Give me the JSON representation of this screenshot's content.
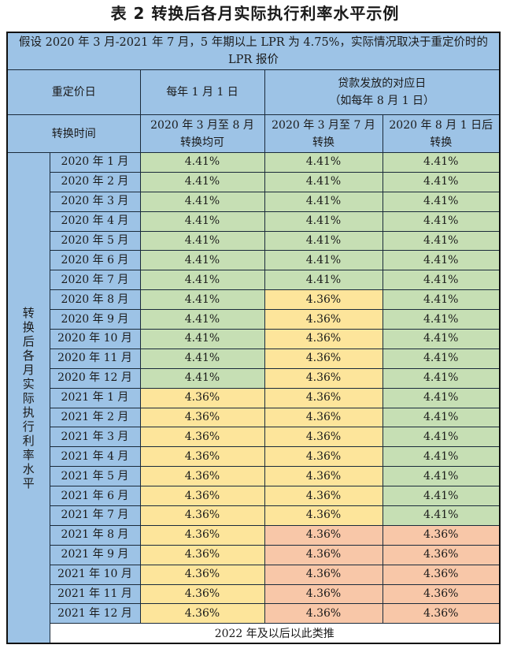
{
  "title": "表 2  转换后各月实际执行利率水平示例",
  "note": "假设 2020 年 3 月-2021 年 7 月，5 年期以上 LPR 为 4.75%，实际情况取决于重定价时的 LPR 报价",
  "header": {
    "repricing_label": "重定价日",
    "jan1": "每年 1 月 1 日",
    "loan_day_line1": "贷款发放的对应日",
    "loan_day_line2": "（如每年 8 月 1 日）",
    "switch_time_label": "转换时间",
    "col1_line1": "2020 年 3 月至 8 月",
    "col1_line2": "转换均可",
    "col2_line1": "2020 年 3 月至 7 月",
    "col2_line2": "转换",
    "col3_line1": "2020 年 8 月 1 日后",
    "col3_line2": "转换"
  },
  "vertical_label": "转换后各月实际执行利率水平",
  "colors": {
    "header_blue": "#9dc3e6",
    "green": "#c6dfb4",
    "yellow": "#fde59b",
    "salmon": "#f8c7a8"
  },
  "rows": [
    {
      "month": "2020 年 1 月",
      "c1": "4.41%",
      "c2": "4.41%",
      "c3": "4.41%",
      "k1": "green",
      "k2": "green",
      "k3": "green"
    },
    {
      "month": "2020 年 2 月",
      "c1": "4.41%",
      "c2": "4.41%",
      "c3": "4.41%",
      "k1": "green",
      "k2": "green",
      "k3": "green"
    },
    {
      "month": "2020 年 3 月",
      "c1": "4.41%",
      "c2": "4.41%",
      "c3": "4.41%",
      "k1": "green",
      "k2": "green",
      "k3": "green"
    },
    {
      "month": "2020 年 4 月",
      "c1": "4.41%",
      "c2": "4.41%",
      "c3": "4.41%",
      "k1": "green",
      "k2": "green",
      "k3": "green"
    },
    {
      "month": "2020 年 5 月",
      "c1": "4.41%",
      "c2": "4.41%",
      "c3": "4.41%",
      "k1": "green",
      "k2": "green",
      "k3": "green"
    },
    {
      "month": "2020 年 6 月",
      "c1": "4.41%",
      "c2": "4.41%",
      "c3": "4.41%",
      "k1": "green",
      "k2": "green",
      "k3": "green"
    },
    {
      "month": "2020 年 7 月",
      "c1": "4.41%",
      "c2": "4.41%",
      "c3": "4.41%",
      "k1": "green",
      "k2": "green",
      "k3": "green"
    },
    {
      "month": "2020 年 8 月",
      "c1": "4.41%",
      "c2": "4.36%",
      "c3": "4.41%",
      "k1": "green",
      "k2": "yellow",
      "k3": "green"
    },
    {
      "month": "2020 年 9 月",
      "c1": "4.41%",
      "c2": "4.36%",
      "c3": "4.41%",
      "k1": "green",
      "k2": "yellow",
      "k3": "green"
    },
    {
      "month": "2020 年 10 月",
      "c1": "4.41%",
      "c2": "4.36%",
      "c3": "4.41%",
      "k1": "green",
      "k2": "yellow",
      "k3": "green"
    },
    {
      "month": "2020 年 11 月",
      "c1": "4.41%",
      "c2": "4.36%",
      "c3": "4.41%",
      "k1": "green",
      "k2": "yellow",
      "k3": "green"
    },
    {
      "month": "2020 年 12 月",
      "c1": "4.41%",
      "c2": "4.36%",
      "c3": "4.41%",
      "k1": "green",
      "k2": "yellow",
      "k3": "green"
    },
    {
      "month": "2021 年 1 月",
      "c1": "4.36%",
      "c2": "4.36%",
      "c3": "4.41%",
      "k1": "yellow",
      "k2": "yellow",
      "k3": "green"
    },
    {
      "month": "2021 年 2 月",
      "c1": "4.36%",
      "c2": "4.36%",
      "c3": "4.41%",
      "k1": "yellow",
      "k2": "yellow",
      "k3": "green"
    },
    {
      "month": "2021 年 3 月",
      "c1": "4.36%",
      "c2": "4.36%",
      "c3": "4.41%",
      "k1": "yellow",
      "k2": "yellow",
      "k3": "green"
    },
    {
      "month": "2021 年 4 月",
      "c1": "4.36%",
      "c2": "4.36%",
      "c3": "4.41%",
      "k1": "yellow",
      "k2": "yellow",
      "k3": "green"
    },
    {
      "month": "2021 年 5 月",
      "c1": "4.36%",
      "c2": "4.36%",
      "c3": "4.41%",
      "k1": "yellow",
      "k2": "yellow",
      "k3": "green"
    },
    {
      "month": "2021 年 6 月",
      "c1": "4.36%",
      "c2": "4.36%",
      "c3": "4.41%",
      "k1": "yellow",
      "k2": "yellow",
      "k3": "green"
    },
    {
      "month": "2021 年 7 月",
      "c1": "4.36%",
      "c2": "4.36%",
      "c3": "4.41%",
      "k1": "yellow",
      "k2": "yellow",
      "k3": "green"
    },
    {
      "month": "2021 年 8 月",
      "c1": "4.36%",
      "c2": "4.36%",
      "c3": "4.36%",
      "k1": "yellow",
      "k2": "salmon",
      "k3": "salmon"
    },
    {
      "month": "2021 年 9 月",
      "c1": "4.36%",
      "c2": "4.36%",
      "c3": "4.36%",
      "k1": "yellow",
      "k2": "salmon",
      "k3": "salmon"
    },
    {
      "month": "2021 年 10 月",
      "c1": "4.36%",
      "c2": "4.36%",
      "c3": "4.36%",
      "k1": "yellow",
      "k2": "salmon",
      "k3": "salmon"
    },
    {
      "month": "2021 年 11 月",
      "c1": "4.36%",
      "c2": "4.36%",
      "c3": "4.36%",
      "k1": "yellow",
      "k2": "salmon",
      "k3": "salmon"
    },
    {
      "month": "2021 年 12 月",
      "c1": "4.36%",
      "c2": "4.36%",
      "c3": "4.36%",
      "k1": "yellow",
      "k2": "salmon",
      "k3": "salmon"
    }
  ],
  "footer": "2022 年及以后以此类推"
}
